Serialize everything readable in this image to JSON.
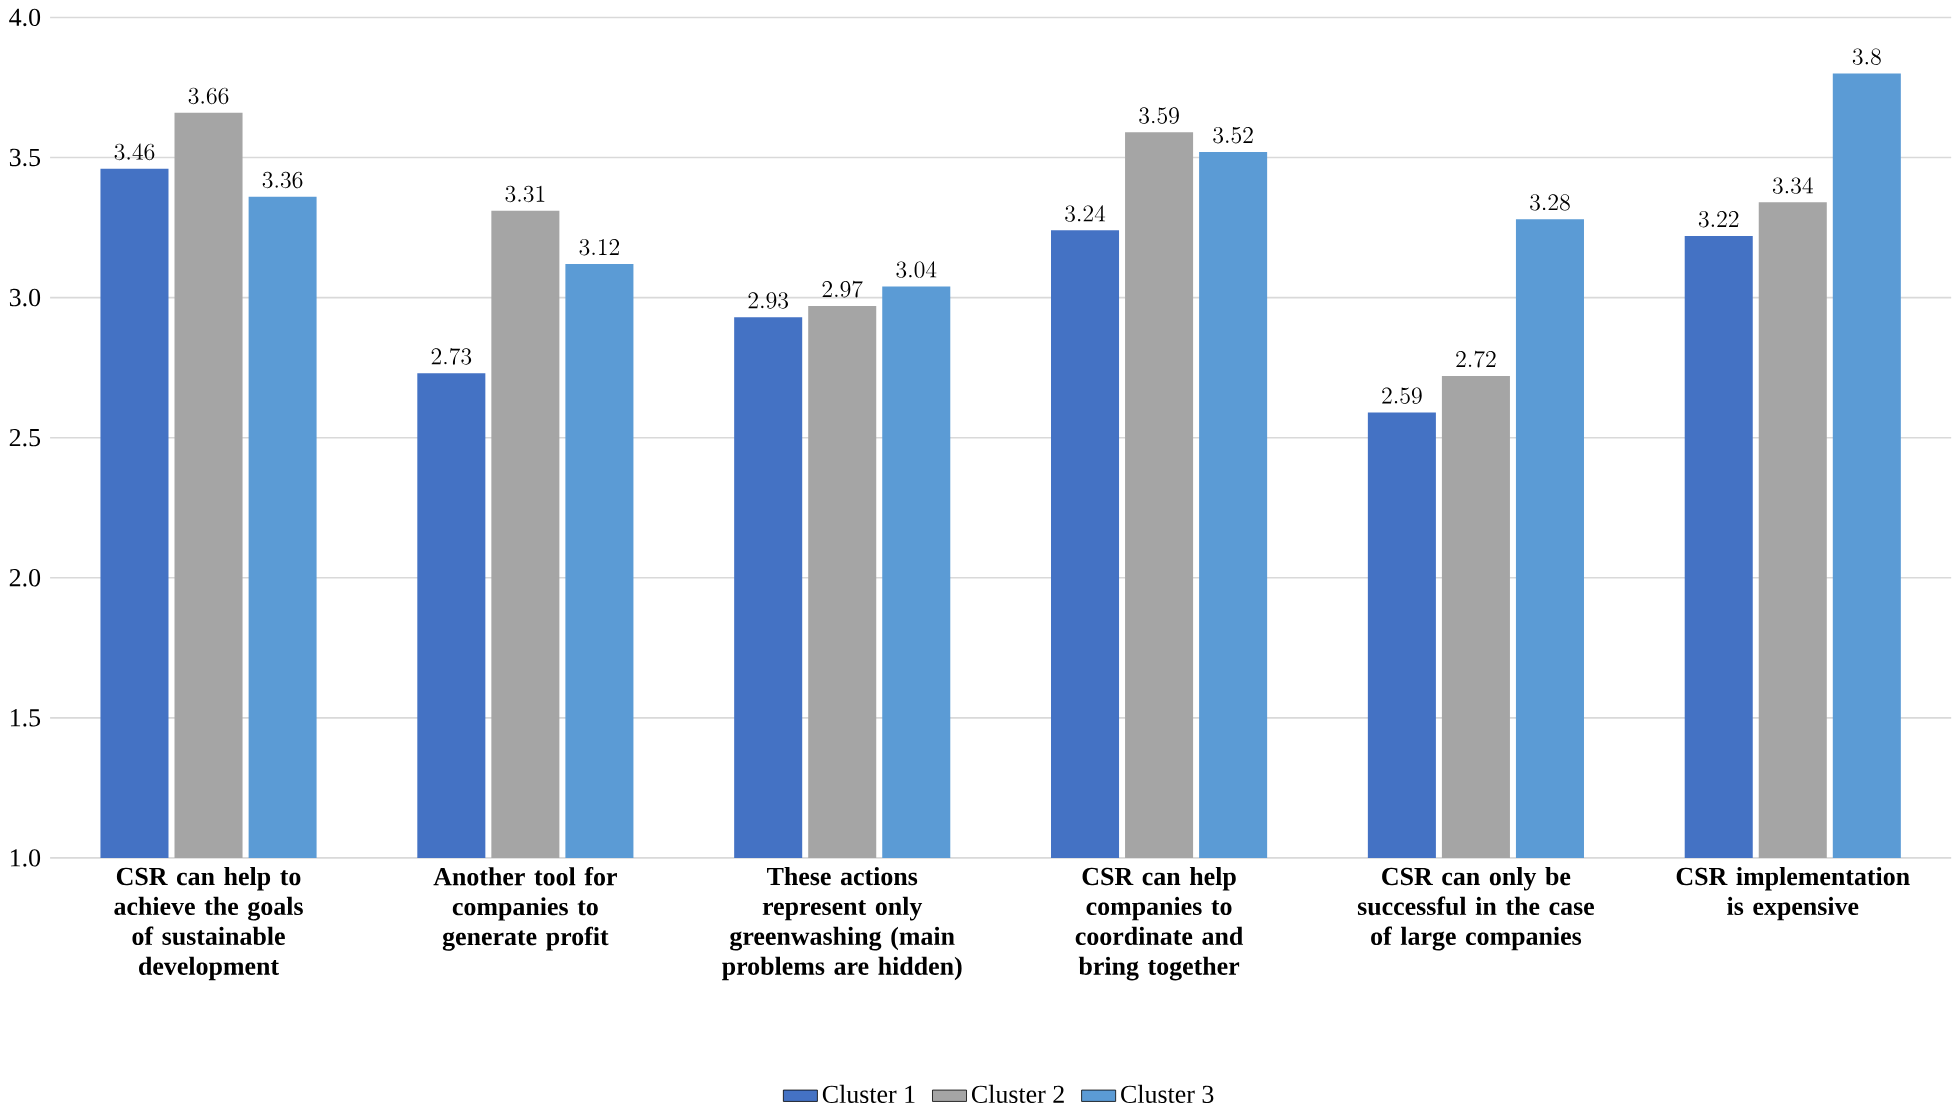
{
  "chart_data": {
    "type": "bar",
    "categories": [
      "CSR can help to achieve the goals of sustainable development",
      "Another tool for companies to generate profit",
      "These actions represent only greenwashing (main problems are hidden)",
      "CSR can help companies to coordinate and bring together",
      "CSR can only be successful in the case of large companies",
      "CSR implementation is expensive"
    ],
    "series": [
      {
        "name": "Cluster 1",
        "color": "#4472c4",
        "values": [
          3.46,
          2.73,
          2.93,
          3.24,
          2.59,
          3.22
        ]
      },
      {
        "name": "Cluster 2",
        "color": "#a5a5a5",
        "values": [
          3.66,
          3.31,
          2.97,
          3.59,
          2.72,
          3.34
        ]
      },
      {
        "name": "Cluster 3",
        "color": "#5b9bd5",
        "values": [
          3.36,
          3.12,
          3.04,
          3.52,
          3.28,
          3.8
        ]
      }
    ],
    "ylim": [
      1,
      4
    ],
    "yticks": [
      {
        "value": 1,
        "label": "1.0"
      },
      {
        "value": 1.5,
        "label": "1.5"
      },
      {
        "value": 2,
        "label": "2.0"
      },
      {
        "value": 2.5,
        "label": "2.5"
      },
      {
        "value": 3,
        "label": "3.0"
      },
      {
        "value": 3.5,
        "label": "3.5"
      },
      {
        "value": 4,
        "label": "4.0"
      }
    ],
    "grid": "y",
    "legend": "bottom",
    "data_labels": true
  }
}
